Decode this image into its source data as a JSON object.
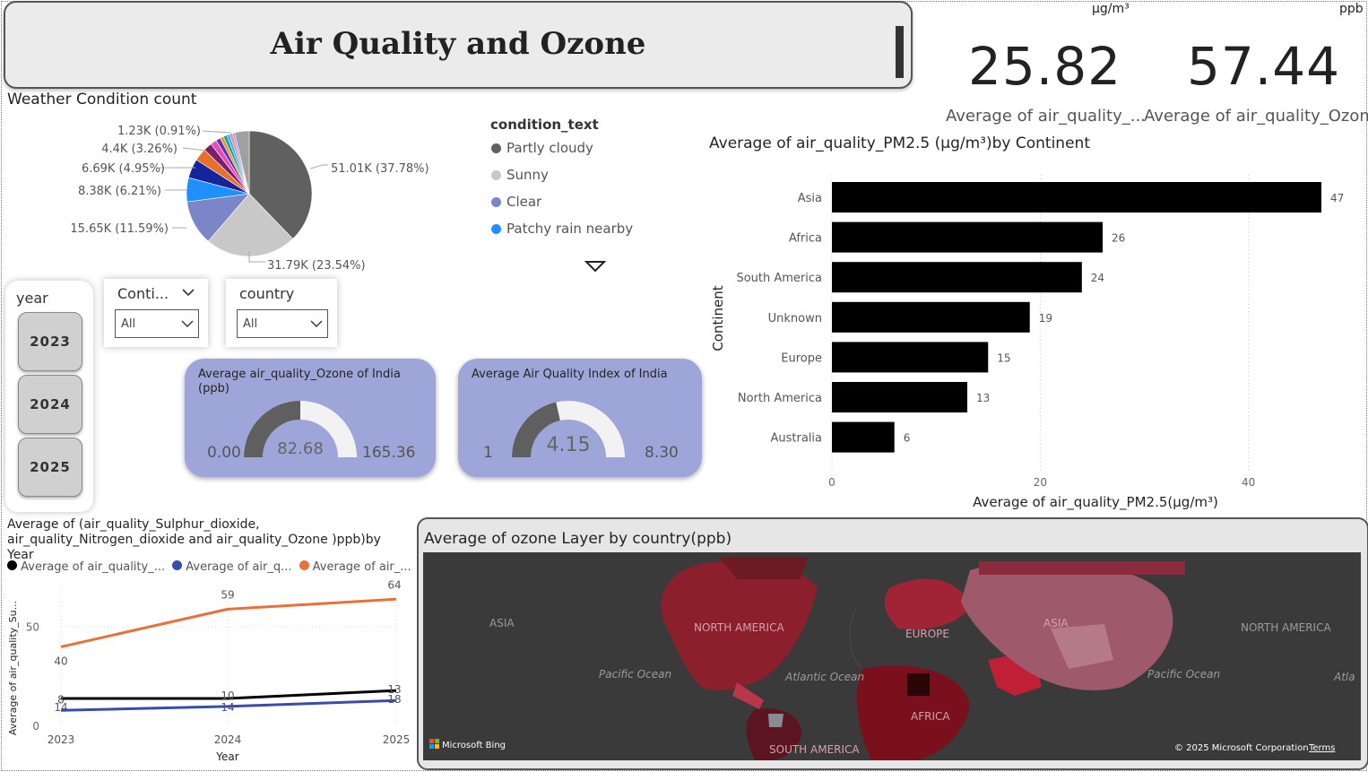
{
  "title": "Air Quality and Ozone",
  "kpis": [
    {
      "unit": "µg/m³",
      "value": "25.82",
      "label": "Average of air_quality_..."
    },
    {
      "unit": "ppb",
      "value": "57.44",
      "label": "Average of air_quality_Ozone"
    }
  ],
  "weather": {
    "title": "Weather Condition count",
    "legend_title": "condition_text",
    "legend": [
      {
        "label": "Partly cloudy",
        "color": "#606060"
      },
      {
        "label": "Sunny",
        "color": "#c8c8c8"
      },
      {
        "label": "Clear",
        "color": "#7b86c9"
      },
      {
        "label": "Patchy rain nearby",
        "color": "#1e90ff"
      }
    ],
    "slice_labels": [
      "51.01K (37.78%)",
      "31.79K (23.54%)",
      "15.65K (11.59%)",
      "8.38K (6.21%)",
      "6.69K (4.95%)",
      "4.4K (3.26%)",
      "1.23K (0.91%)"
    ]
  },
  "pie_data": {
    "type": "pie",
    "slices": [
      {
        "value": 37.78,
        "color": "#606060"
      },
      {
        "value": 23.54,
        "color": "#c8c8c8"
      },
      {
        "value": 11.59,
        "color": "#7b86c9"
      },
      {
        "value": 6.21,
        "color": "#1e90ff"
      },
      {
        "value": 4.95,
        "color": "#16249b"
      },
      {
        "value": 3.26,
        "color": "#e8702a"
      },
      {
        "value": 2.2,
        "color": "#7a1f6e"
      },
      {
        "value": 1.6,
        "color": "#e34fb5"
      },
      {
        "value": 1.2,
        "color": "#6a2fb0"
      },
      {
        "value": 0.91,
        "color": "#d4a12a"
      },
      {
        "value": 0.9,
        "color": "#1b9aa0"
      },
      {
        "value": 0.8,
        "color": "#3cb0e8"
      },
      {
        "value": 0.7,
        "color": "#f07f9c"
      },
      {
        "value": 0.6,
        "color": "#9aa0e0"
      },
      {
        "value": 3.75,
        "color": "#a0a0a0"
      }
    ]
  },
  "slicers": {
    "year_label": "year",
    "years": [
      "2023",
      "2024",
      "2025"
    ],
    "continent_label": "Conti...",
    "continent_value": "All",
    "country_label": "country",
    "country_value": "All"
  },
  "gauges": [
    {
      "title": "Average air_quality_Ozone of India (ppb)",
      "min": "0.00",
      "value": "82.68",
      "max": "165.36",
      "fraction": 0.5
    },
    {
      "title": "Average Air Quality Index of India",
      "min": "1",
      "value": "4.15",
      "max": "8.30",
      "fraction": 0.43
    }
  ],
  "chart_data": [
    {
      "type": "bar",
      "orientation": "horizontal",
      "title": "Average of air_quality_PM2.5 (µg/m³)by Continent",
      "ylabel": "Continent",
      "xlabel": "Average of air_quality_PM2.5(µg/m³)",
      "categories": [
        "Asia",
        "Africa",
        "South America",
        "Unknown",
        "Europe",
        "North America",
        "Australia"
      ],
      "values": [
        47,
        26,
        24,
        19,
        15,
        13,
        6
      ],
      "xlim": [
        0,
        47
      ],
      "xticks": [
        0,
        20,
        40
      ],
      "color": "#000000"
    },
    {
      "type": "line",
      "title": "Average of (air_quality_Sulphur_dioxide, air_quality_Nitrogen_dioxide and air_quality_Ozone )ppb)by Year",
      "xlabel": "Year",
      "ylabel": "Average of air_quality_Su...",
      "x": [
        "2023",
        "2024",
        "2025"
      ],
      "ylim": [
        0,
        70
      ],
      "yticks": [
        0,
        50
      ],
      "series": [
        {
          "name": "Average of air_quality_...",
          "color": "#000000",
          "values": [
            14,
            14,
            18
          ]
        },
        {
          "name": "Average of air_q...",
          "color": "#3b4bab",
          "values": [
            8,
            10,
            13
          ]
        },
        {
          "name": "Average of air_...",
          "color": "#e8703a",
          "values": [
            40,
            59,
            64
          ]
        }
      ]
    }
  ],
  "map": {
    "title": "Average of ozone Layer by country(ppb)",
    "labels": [
      "ASIA",
      "NORTH AMERICA",
      "EUROPE",
      "ASIA",
      "NORTH AMERICA",
      "Pacific Ocean",
      "Atlantic Ocean",
      "Pacific Ocean",
      "Atla",
      "AFRICA",
      "SOUTH AMERICA"
    ],
    "bing": "Microsoft Bing",
    "copyright": "© 2025 Microsoft Corporation",
    "terms": "Terms"
  }
}
